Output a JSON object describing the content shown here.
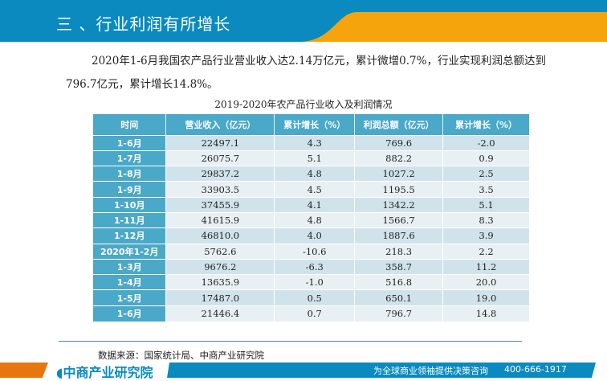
{
  "header": {
    "title": "三 、行业利润有所增长"
  },
  "paragraph": "2020年1-6月我国农产品行业营业收入达2.14万亿元，累计微增0.7%，行业实现利润总额达到796.7亿元，累计增长14.8%。",
  "table": {
    "caption": "2019-2020年农产品行业收入及利润情况",
    "headers": [
      "时间",
      "营业收入（亿元）",
      "累计增长（%）",
      "利润总额（亿元）",
      "累计增长（%）"
    ],
    "rows": [
      [
        "1-6月",
        "22497.1",
        "4.3",
        "769.6",
        "-2.0"
      ],
      [
        "1-7月",
        "26075.7",
        "5.1",
        "882.2",
        "0.9"
      ],
      [
        "1-8月",
        "29837.2",
        "4.8",
        "1027.2",
        "2.5"
      ],
      [
        "1-9月",
        "33903.5",
        "4.5",
        "1195.5",
        "3.5"
      ],
      [
        "1-10月",
        "37455.9",
        "4.1",
        "1342.2",
        "5.1"
      ],
      [
        "1-11月",
        "41615.9",
        "4.8",
        "1566.7",
        "8.3"
      ],
      [
        "1-12月",
        "46810.0",
        "4.0",
        "1887.6",
        "3.9"
      ],
      [
        "2020年1-2月",
        "5762.6",
        "-10.6",
        "218.3",
        "2.2"
      ],
      [
        "1-3月",
        "9676.2",
        "-6.3",
        "358.7",
        "11.2"
      ],
      [
        "1-4月",
        "13635.9",
        "-1.0",
        "516.8",
        "20.0"
      ],
      [
        "1-5月",
        "17487.0",
        "0.5",
        "650.1",
        "19.0"
      ],
      [
        "1-6月",
        "21446.4",
        "0.7",
        "796.7",
        "14.8"
      ]
    ]
  },
  "source": "数据来源：国家统计局、中商产业研究院",
  "footer": {
    "logo": "中商产业研究院",
    "slogan": "为全球商业领袖提供决策咨询",
    "phone": "400-666-1917"
  },
  "colors": {
    "blue": "#0a8abf",
    "orange": "#f5a40c",
    "table_header": "#4aa8c8"
  }
}
